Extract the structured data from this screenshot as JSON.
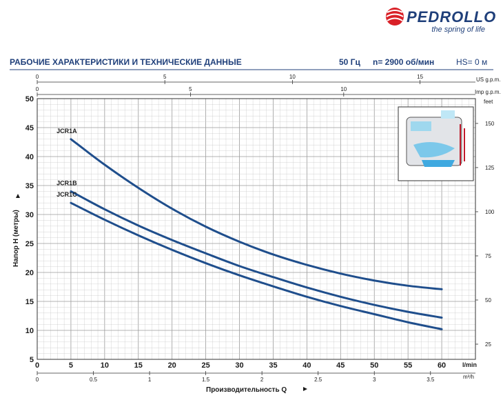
{
  "brand": {
    "name": "PEDROLLO",
    "tagline": "the spring of life"
  },
  "header": {
    "title": "РАБОЧИЕ ХАРАКТЕРИСТИКИ И ТЕХНИЧЕСКИЕ ДАННЫЕ",
    "frequency": "50 Гц",
    "speed": "n= 2900 об/мин",
    "hs": "HS= 0 м"
  },
  "colors": {
    "curve": "#1f4e8c",
    "grid": "#c9c9c9",
    "text": "#1a1a1a",
    "accent": "#1f3f7a",
    "logo_red": "#d92027"
  },
  "chart_data": {
    "type": "line",
    "xlabel": "Производительность Q",
    "ylabel": "Напор H (метры)",
    "xlim": [
      0,
      65
    ],
    "ylim": [
      5,
      50
    ],
    "x_unit": "l/min",
    "x_ticks": [
      0,
      5,
      10,
      15,
      20,
      25,
      30,
      35,
      40,
      45,
      50,
      55,
      60
    ],
    "y_ticks": [
      5,
      10,
      15,
      20,
      25,
      30,
      35,
      40,
      45,
      50
    ],
    "grid": true,
    "secondary_axes": {
      "m3h": {
        "unit": "m³/h",
        "ticks": [
          0,
          0.5,
          1,
          1.5,
          2,
          2.5,
          3,
          3.5
        ]
      },
      "us_gpm": {
        "unit": "US g.p.m.",
        "ticks": [
          0,
          5,
          10,
          15
        ]
      },
      "imp_gpm": {
        "unit": "Imp g.p.m.",
        "ticks": [
          0,
          5,
          10
        ]
      },
      "feet": {
        "unit": "feet",
        "ticks": [
          25,
          50,
          75,
          100,
          125,
          150
        ]
      }
    },
    "series": [
      {
        "name": "JCR1A",
        "x": [
          5,
          10,
          15,
          20,
          25,
          30,
          35,
          40,
          45,
          50,
          55,
          60
        ],
        "y": [
          43,
          38.6,
          34.6,
          31,
          27.9,
          25.3,
          23.1,
          21.3,
          19.8,
          18.6,
          17.7,
          17.1
        ]
      },
      {
        "name": "JCR1B",
        "x": [
          5,
          10,
          15,
          20,
          25,
          30,
          35,
          40,
          45,
          50,
          55,
          60
        ],
        "y": [
          34,
          30.9,
          28.1,
          25.6,
          23.3,
          21.1,
          19.2,
          17.4,
          15.8,
          14.4,
          13.2,
          12.2
        ]
      },
      {
        "name": "JCR1C",
        "x": [
          5,
          10,
          15,
          20,
          25,
          30,
          35,
          40,
          45,
          50,
          55,
          60
        ],
        "y": [
          32,
          29.1,
          26.4,
          23.9,
          21.6,
          19.5,
          17.6,
          15.8,
          14.2,
          12.8,
          11.4,
          10.2
        ]
      }
    ]
  }
}
